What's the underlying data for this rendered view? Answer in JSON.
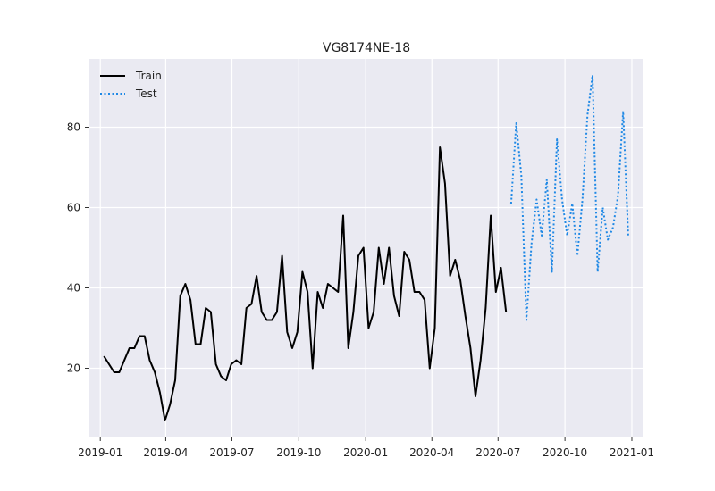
{
  "chart_data": {
    "type": "line",
    "title": "VG8174NE-18",
    "xlabel": "",
    "ylabel": "",
    "x_axis": {
      "type": "date",
      "range": [
        "2018-12-17",
        "2021-01-17"
      ],
      "ticks": [
        "2019-01-01",
        "2019-04-01",
        "2019-07-01",
        "2019-10-01",
        "2020-01-01",
        "2020-04-01",
        "2020-07-01",
        "2020-10-01",
        "2021-01-01"
      ],
      "tick_labels": [
        "2019-01",
        "2019-04",
        "2019-07",
        "2019-10",
        "2020-01",
        "2020-04",
        "2020-07",
        "2020-10",
        "2021-01"
      ]
    },
    "y_axis": {
      "range": [
        3,
        97
      ],
      "ticks": [
        20,
        40,
        60,
        80
      ],
      "tick_labels": [
        "20",
        "40",
        "60",
        "80"
      ]
    },
    "grid": true,
    "background": "#eaeaf2",
    "legend": {
      "position": "top-left"
    },
    "series": [
      {
        "name": "Train",
        "color": "#000000",
        "style": "solid",
        "points": [
          [
            "2019-01-06",
            23
          ],
          [
            "2019-01-13",
            21
          ],
          [
            "2019-01-20",
            19
          ],
          [
            "2019-01-27",
            19
          ],
          [
            "2019-02-03",
            22
          ],
          [
            "2019-02-10",
            25
          ],
          [
            "2019-02-17",
            25
          ],
          [
            "2019-02-24",
            28
          ],
          [
            "2019-03-03",
            28
          ],
          [
            "2019-03-10",
            22
          ],
          [
            "2019-03-17",
            19
          ],
          [
            "2019-03-24",
            14
          ],
          [
            "2019-03-31",
            7
          ],
          [
            "2019-04-07",
            11
          ],
          [
            "2019-04-14",
            17
          ],
          [
            "2019-04-21",
            38
          ],
          [
            "2019-04-28",
            41
          ],
          [
            "2019-05-05",
            37
          ],
          [
            "2019-05-12",
            26
          ],
          [
            "2019-05-19",
            26
          ],
          [
            "2019-05-26",
            35
          ],
          [
            "2019-06-02",
            34
          ],
          [
            "2019-06-09",
            21
          ],
          [
            "2019-06-16",
            18
          ],
          [
            "2019-06-23",
            17
          ],
          [
            "2019-06-30",
            21
          ],
          [
            "2019-07-07",
            22
          ],
          [
            "2019-07-14",
            21
          ],
          [
            "2019-07-21",
            35
          ],
          [
            "2019-07-28",
            36
          ],
          [
            "2019-08-04",
            43
          ],
          [
            "2019-08-11",
            34
          ],
          [
            "2019-08-18",
            32
          ],
          [
            "2019-08-25",
            32
          ],
          [
            "2019-09-01",
            34
          ],
          [
            "2019-09-08",
            48
          ],
          [
            "2019-09-15",
            29
          ],
          [
            "2019-09-22",
            25
          ],
          [
            "2019-09-29",
            29
          ],
          [
            "2019-10-06",
            44
          ],
          [
            "2019-10-13",
            39
          ],
          [
            "2019-10-20",
            20
          ],
          [
            "2019-10-27",
            39
          ],
          [
            "2019-11-03",
            35
          ],
          [
            "2019-11-10",
            41
          ],
          [
            "2019-11-17",
            40
          ],
          [
            "2019-11-24",
            39
          ],
          [
            "2019-12-01",
            58
          ],
          [
            "2019-12-08",
            25
          ],
          [
            "2019-12-15",
            34
          ],
          [
            "2019-12-22",
            48
          ],
          [
            "2019-12-29",
            50
          ],
          [
            "2020-01-05",
            30
          ],
          [
            "2020-01-12",
            34
          ],
          [
            "2020-01-19",
            50
          ],
          [
            "2020-01-26",
            41
          ],
          [
            "2020-02-02",
            50
          ],
          [
            "2020-02-09",
            38
          ],
          [
            "2020-02-16",
            33
          ],
          [
            "2020-02-23",
            49
          ],
          [
            "2020-03-01",
            47
          ],
          [
            "2020-03-08",
            39
          ],
          [
            "2020-03-15",
            39
          ],
          [
            "2020-03-22",
            37
          ],
          [
            "2020-03-29",
            20
          ],
          [
            "2020-04-05",
            30
          ],
          [
            "2020-04-12",
            75
          ],
          [
            "2020-04-19",
            66
          ],
          [
            "2020-04-26",
            43
          ],
          [
            "2020-05-03",
            47
          ],
          [
            "2020-05-10",
            42
          ],
          [
            "2020-05-17",
            33
          ],
          [
            "2020-05-24",
            25
          ],
          [
            "2020-05-31",
            13
          ],
          [
            "2020-06-07",
            22
          ],
          [
            "2020-06-14",
            35
          ],
          [
            "2020-06-21",
            58
          ],
          [
            "2020-06-28",
            39
          ],
          [
            "2020-07-05",
            45
          ],
          [
            "2020-07-12",
            34
          ]
        ]
      },
      {
        "name": "Test",
        "color": "#1e88e5",
        "style": "dotted",
        "points": [
          [
            "2020-07-19",
            61
          ],
          [
            "2020-07-26",
            81
          ],
          [
            "2020-08-02",
            68
          ],
          [
            "2020-08-09",
            32
          ],
          [
            "2020-08-16",
            51
          ],
          [
            "2020-08-23",
            62
          ],
          [
            "2020-08-30",
            53
          ],
          [
            "2020-09-06",
            67
          ],
          [
            "2020-09-13",
            44
          ],
          [
            "2020-09-20",
            77
          ],
          [
            "2020-09-27",
            62
          ],
          [
            "2020-10-04",
            53
          ],
          [
            "2020-10-11",
            61
          ],
          [
            "2020-10-18",
            48
          ],
          [
            "2020-10-25",
            62
          ],
          [
            "2020-11-01",
            83
          ],
          [
            "2020-11-08",
            93
          ],
          [
            "2020-11-15",
            44
          ],
          [
            "2020-11-22",
            60
          ],
          [
            "2020-11-29",
            52
          ],
          [
            "2020-12-06",
            55
          ],
          [
            "2020-12-13",
            63
          ],
          [
            "2020-12-20",
            84
          ],
          [
            "2020-12-27",
            53
          ]
        ]
      }
    ]
  }
}
